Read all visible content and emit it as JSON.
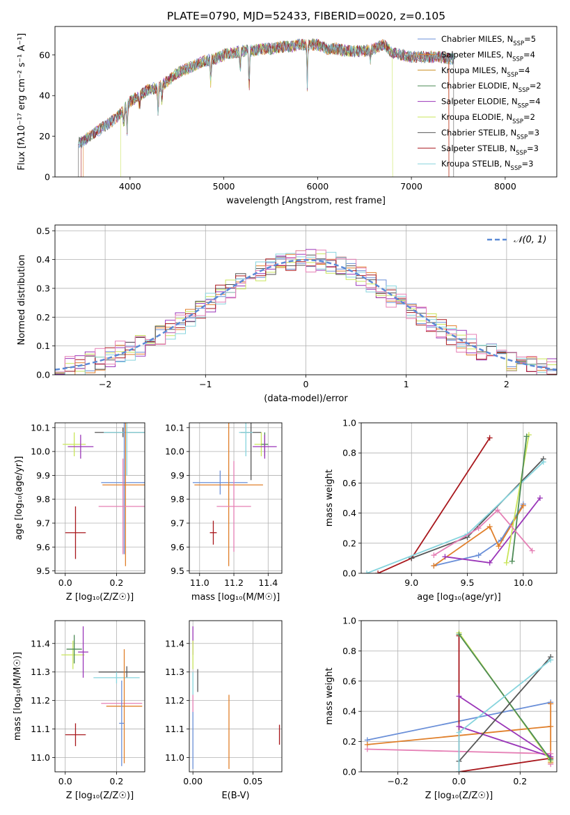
{
  "colors": {
    "Chabrier MILES": "#6a8fd8",
    "Salpeter MILES": "#e07f2a",
    "Kroupa MILES": "#c98a1c",
    "Chabrier ELODIE": "#4c8a55",
    "Salpeter ELODIE": "#9a35b8",
    "Kroupa ELODIE": "#c9e55a",
    "Chabrier STELIB": "#555555",
    "Salpeter STELIB": "#a8171c",
    "Kroupa STELIB": "#86d4dd",
    "Pink": "#e57fb5"
  },
  "chart_data": [
    {
      "id": "spectrum",
      "type": "line",
      "title": "PLATE=0790, MJD=52433, FIBERID=0020, z=0.105",
      "xlabel": "wavelength [Angstrom, rest frame]",
      "ylabel": "Flux [fλ10⁻¹⁷ erg cm⁻² s⁻¹ A⁻¹]",
      "xlim": [
        3200,
        8550
      ],
      "ylim": [
        0,
        74
      ],
      "xticks": [
        4000,
        5000,
        6000,
        7000,
        8000
      ],
      "yticks": [
        0,
        20,
        40,
        60
      ],
      "legend_position": "top-right",
      "legend": [
        {
          "name": "Chabrier MILES",
          "nssp": "5"
        },
        {
          "name": "Salpeter MILES",
          "nssp": "4"
        },
        {
          "name": "Kroupa MILES",
          "nssp": "4"
        },
        {
          "name": "Chabrier ELODIE",
          "nssp": "2"
        },
        {
          "name": "Salpeter ELODIE",
          "nssp": "4"
        },
        {
          "name": "Kroupa ELODIE",
          "nssp": "2"
        },
        {
          "name": "Chabrier STELIB",
          "nssp": "3"
        },
        {
          "name": "Salpeter STELIB",
          "nssp": "3"
        },
        {
          "name": "Kroupa STELIB",
          "nssp": "3"
        }
      ],
      "continuum": [
        [
          3480,
          17
        ],
        [
          3600,
          21
        ],
        [
          3700,
          24
        ],
        [
          3800,
          27
        ],
        [
          3900,
          31
        ],
        [
          4000,
          37
        ],
        [
          4100,
          40
        ],
        [
          4200,
          43
        ],
        [
          4300,
          44
        ],
        [
          4400,
          47
        ],
        [
          4500,
          51
        ],
        [
          4600,
          53
        ],
        [
          4700,
          55
        ],
        [
          4800,
          57
        ],
        [
          4900,
          58
        ],
        [
          5000,
          60
        ],
        [
          5100,
          61
        ],
        [
          5200,
          62
        ],
        [
          5300,
          62
        ],
        [
          5400,
          63
        ],
        [
          5500,
          63
        ],
        [
          5600,
          64
        ],
        [
          5700,
          64
        ],
        [
          5800,
          65
        ],
        [
          5900,
          65
        ],
        [
          6000,
          65
        ],
        [
          6100,
          63
        ],
        [
          6200,
          63
        ],
        [
          6300,
          62
        ],
        [
          6400,
          62
        ],
        [
          6500,
          62
        ],
        [
          6600,
          63
        ],
        [
          6700,
          65
        ],
        [
          6800,
          61
        ],
        [
          6900,
          60
        ],
        [
          7000,
          59
        ],
        [
          7100,
          59
        ],
        [
          7200,
          59
        ],
        [
          7300,
          59
        ],
        [
          7400,
          58
        ]
      ],
      "absorption_features": [
        [
          3934,
          25
        ],
        [
          3969,
          22
        ],
        [
          4102,
          34
        ],
        [
          4300,
          30
        ],
        [
          4340,
          37
        ],
        [
          4861,
          46
        ],
        [
          5175,
          52
        ],
        [
          5270,
          43
        ],
        [
          5890,
          45
        ],
        [
          6563,
          58
        ]
      ],
      "spectrum_ranges": [
        {
          "series": "Salpeter MILES",
          "start": 3500,
          "end": 7400
        },
        {
          "series": "Kroupa ELODIE",
          "start": 3900,
          "end": 6800
        },
        {
          "series": "Salpeter STELIB",
          "start": 3480,
          "end": 7400
        },
        {
          "series": "Chabrier STELIB",
          "start": 3450,
          "end": 7450
        }
      ]
    },
    {
      "id": "residuals",
      "type": "histogram",
      "xlabel": "(data-model)/error",
      "ylabel": "Normed distribution",
      "xlim": [
        -2.5,
        2.5
      ],
      "ylim": [
        0,
        0.52
      ],
      "xticks": [
        -2,
        -1,
        0,
        1,
        2
      ],
      "yticks": [
        0.0,
        0.1,
        0.2,
        0.3,
        0.4,
        0.5
      ],
      "grid": true,
      "legend_position": "top-right",
      "reference_curve": {
        "name": "𝒩(0, 1)",
        "mean": 0,
        "sigma": 1
      },
      "bin_width": 0.1,
      "histograms": [
        {
          "series": "Chabrier MILES",
          "noise": 0.03
        },
        {
          "series": "Salpeter MILES",
          "noise": 0.035
        },
        {
          "series": "Salpeter ELODIE",
          "noise": 0.04
        },
        {
          "series": "Kroupa ELODIE",
          "noise": 0.035
        },
        {
          "series": "Chabrier STELIB",
          "noise": 0.03
        },
        {
          "series": "Salpeter STELIB",
          "noise": 0.035
        },
        {
          "series": "Kroupa STELIB",
          "noise": 0.04
        },
        {
          "series": "Pink",
          "noise": 0.045
        }
      ]
    },
    {
      "id": "age_vs_Z",
      "type": "errorbar",
      "xlabel": "Z [log₁₀(Z/Z☉)]",
      "ylabel": "age  [log₁₀(age/yr)]",
      "xlim": [
        -0.04,
        0.31
      ],
      "ylim": [
        9.49,
        10.12
      ],
      "xticks": [
        0.0,
        0.2
      ],
      "yticks": [
        9.5,
        9.6,
        9.7,
        9.8,
        9.9,
        10.0,
        10.1
      ],
      "grid": true,
      "points": [
        {
          "series": "Salpeter STELIB",
          "x": 0.04,
          "y": 9.66,
          "xerr": 0.04,
          "yerr": 0.11
        },
        {
          "series": "Kroupa ELODIE",
          "x": 0.035,
          "y": 10.03,
          "xerr": 0.045,
          "yerr": 0.05
        },
        {
          "series": "Salpeter ELODIE",
          "x": 0.06,
          "y": 10.02,
          "xerr": 0.05,
          "yerr": 0.05
        },
        {
          "series": "Chabrier STELIB",
          "x": 0.225,
          "y": 10.08,
          "xerr": 0.11,
          "yerr": 0.02
        },
        {
          "series": "Kroupa STELIB",
          "x": 0.24,
          "y": 10.08,
          "xerr": 0.09,
          "yerr": 0.18
        },
        {
          "series": "Chabrier MILES",
          "x": 0.23,
          "y": 9.87,
          "xerr": 0.09,
          "yerr": 0.3
        },
        {
          "series": "Salpeter MILES",
          "x": 0.235,
          "y": 9.86,
          "xerr": 0.09,
          "yerr": 0.34
        },
        {
          "series": "Pink",
          "x": 0.225,
          "y": 9.77,
          "xerr": 0.095,
          "yerr": 0.2
        }
      ]
    },
    {
      "id": "age_vs_mass",
      "type": "errorbar",
      "xlabel": "mass [log₁₀(M/M☉)]",
      "xlim": [
        10.94,
        11.48
      ],
      "ylim": [
        9.49,
        10.12
      ],
      "xticks": [
        11.0,
        11.2,
        11.4
      ],
      "yticks": [
        9.5,
        9.6,
        9.7,
        9.8,
        9.9,
        10.0,
        10.1
      ],
      "grid": true,
      "points": [
        {
          "series": "Salpeter STELIB",
          "x": 11.08,
          "y": 9.66,
          "xerr": 0.02,
          "yerr": 0.05
        },
        {
          "series": "Chabrier MILES",
          "x": 11.12,
          "y": 9.87,
          "xerr": 0.16,
          "yerr": 0.05
        },
        {
          "series": "Salpeter MILES",
          "x": 11.17,
          "y": 9.86,
          "xerr": 0.2,
          "yerr": 0.34
        },
        {
          "series": "Pink",
          "x": 11.2,
          "y": 9.77,
          "xerr": 0.1,
          "yerr": 0.19
        },
        {
          "series": "Chabrier STELIB",
          "x": 11.3,
          "y": 10.08,
          "xerr": 0.06,
          "yerr": 0.2
        },
        {
          "series": "Kroupa STELIB",
          "x": 11.27,
          "y": 10.08,
          "xerr": 0.04,
          "yerr": 0.1
        },
        {
          "series": "Kroupa ELODIE",
          "x": 11.36,
          "y": 10.03,
          "xerr": 0.04,
          "yerr": 0.05
        },
        {
          "series": "Chabrier ELODIE",
          "x": 11.38,
          "y": 10.03,
          "xerr": 0.02,
          "yerr": 0.05
        },
        {
          "series": "Salpeter ELODIE",
          "x": 11.38,
          "y": 10.02,
          "xerr": 0.07,
          "yerr": 0.05
        }
      ]
    },
    {
      "id": "weight_vs_age",
      "type": "line",
      "xlabel": "age  [log₁₀(age/yr)]",
      "ylabel": "mass weight",
      "xlim": [
        8.55,
        10.3
      ],
      "ylim": [
        0,
        1.0
      ],
      "xticks": [
        9.0,
        9.5,
        10.0
      ],
      "yticks": [
        0.0,
        0.2,
        0.4,
        0.6,
        0.8,
        1.0
      ],
      "grid": true,
      "series": [
        {
          "series": "Salpeter STELIB",
          "points": [
            [
              8.7,
              0.0
            ],
            [
              9.0,
              0.1
            ],
            [
              9.7,
              0.9
            ]
          ]
        },
        {
          "series": "Chabrier STELIB",
          "points": [
            [
              9.0,
              0.1
            ],
            [
              9.5,
              0.24
            ],
            [
              10.18,
              0.76
            ]
          ]
        },
        {
          "series": "Kroupa STELIB",
          "points": [
            [
              8.6,
              0.0
            ],
            [
              9.5,
              0.26
            ],
            [
              10.18,
              0.74
            ]
          ]
        },
        {
          "series": "Chabrier MILES",
          "points": [
            [
              9.2,
              0.05
            ],
            [
              9.6,
              0.12
            ],
            [
              9.8,
              0.22
            ],
            [
              10.0,
              0.46
            ]
          ]
        },
        {
          "series": "Salpeter MILES",
          "points": [
            [
              9.2,
              0.05
            ],
            [
              9.7,
              0.31
            ],
            [
              9.78,
              0.18
            ],
            [
              10.0,
              0.45
            ]
          ]
        },
        {
          "series": "Salpeter ELODIE",
          "points": [
            [
              9.3,
              0.11
            ],
            [
              9.7,
              0.07
            ],
            [
              10.15,
              0.5
            ]
          ]
        },
        {
          "series": "Kroupa ELODIE",
          "points": [
            [
              9.85,
              0.07
            ],
            [
              10.05,
              0.92
            ]
          ]
        },
        {
          "series": "Chabrier ELODIE",
          "points": [
            [
              9.9,
              0.08
            ],
            [
              10.03,
              0.91
            ]
          ]
        },
        {
          "series": "Pink",
          "points": [
            [
              9.2,
              0.12
            ],
            [
              9.6,
              0.3
            ],
            [
              9.77,
              0.42
            ],
            [
              10.08,
              0.15
            ]
          ]
        }
      ]
    },
    {
      "id": "mass_vs_Z",
      "type": "errorbar",
      "xlabel": "Z [log₁₀(Z/Z☉)]",
      "ylabel": "mass [log₁₀(M/M☉)]",
      "xlim": [
        -0.04,
        0.31
      ],
      "ylim": [
        10.95,
        11.48
      ],
      "xticks": [
        0.0,
        0.2
      ],
      "yticks": [
        11.0,
        11.1,
        11.2,
        11.3,
        11.4
      ],
      "grid": true,
      "points": [
        {
          "series": "Salpeter STELIB",
          "x": 0.04,
          "y": 11.08,
          "xerr": 0.04,
          "yerr": 0.04
        },
        {
          "series": "Kroupa ELODIE",
          "x": 0.03,
          "y": 11.36,
          "xerr": 0.045,
          "yerr": 0.05
        },
        {
          "series": "Chabrier ELODIE",
          "x": 0.035,
          "y": 11.38,
          "xerr": 0.03,
          "yerr": 0.05
        },
        {
          "series": "Salpeter ELODIE",
          "x": 0.07,
          "y": 11.37,
          "xerr": 0.02,
          "yerr": 0.09
        },
        {
          "series": "Chabrier STELIB",
          "x": 0.24,
          "y": 11.3,
          "xerr": 0.11,
          "yerr": 0.02
        },
        {
          "series": "Kroupa STELIB",
          "x": 0.2,
          "y": 11.28,
          "xerr": 0.09,
          "yerr": 0.02
        },
        {
          "series": "Pink",
          "x": 0.22,
          "y": 11.19,
          "xerr": 0.08,
          "yerr": 0.01
        },
        {
          "series": "Salpeter MILES",
          "x": 0.23,
          "y": 11.18,
          "xerr": 0.07,
          "yerr": 0.2
        },
        {
          "series": "Chabrier MILES",
          "x": 0.22,
          "y": 11.12,
          "xerr": 0.01,
          "yerr": 0.15
        }
      ]
    },
    {
      "id": "mass_vs_EBV",
      "type": "errorbar",
      "xlabel": "E(B-V)",
      "xlim": [
        -0.003,
        0.074
      ],
      "ylim": [
        10.95,
        11.48
      ],
      "xticks": [
        0.0,
        0.05
      ],
      "yticks": [
        11.0,
        11.1,
        11.2,
        11.3,
        11.4
      ],
      "grid": true,
      "points": [
        {
          "series": "Salpeter ELODIE",
          "x": 0.0,
          "y": 11.41,
          "xerr": 0,
          "yerr": 0.05
        },
        {
          "series": "Kroupa ELODIE",
          "x": 0.0,
          "y": 11.36,
          "xerr": 0,
          "yerr": 0.05
        },
        {
          "series": "Chabrier STELIB",
          "x": 0.004,
          "y": 11.27,
          "xerr": 0,
          "yerr": 0.04
        },
        {
          "series": "Kroupa STELIB",
          "x": 0.0,
          "y": 11.26,
          "xerr": 0,
          "yerr": 0.04
        },
        {
          "series": "Pink",
          "x": 0.0,
          "y": 11.19,
          "xerr": 0,
          "yerr": 0.03
        },
        {
          "series": "Salpeter MILES",
          "x": 0.03,
          "y": 11.09,
          "xerr": 0,
          "yerr": 0.13
        },
        {
          "series": "Chabrier MILES",
          "x": 0.0,
          "y": 11.06,
          "xerr": 0,
          "yerr": 0.1
        },
        {
          "series": "Salpeter STELIB",
          "x": 0.072,
          "y": 11.08,
          "xerr": 0,
          "yerr": 0.035
        }
      ]
    },
    {
      "id": "weight_vs_Z",
      "type": "line",
      "xlabel": "Z [log₁₀(Z/Z☉)]",
      "ylabel": "mass weight",
      "xlim": [
        -0.32,
        0.32
      ],
      "ylim": [
        0,
        1.0
      ],
      "xticks": [
        -0.2,
        0.0,
        0.2
      ],
      "yticks": [
        0.0,
        0.2,
        0.4,
        0.6,
        0.8,
        1.0
      ],
      "grid": true,
      "series": [
        {
          "series": "Chabrier MILES",
          "points": [
            [
              -0.3,
              0.21
            ],
            [
              0.3,
              0.46
            ]
          ]
        },
        {
          "series": "Salpeter MILES",
          "points": [
            [
              -0.3,
              0.18
            ],
            [
              0.3,
              0.3
            ],
            [
              0.3,
              0.45
            ],
            [
              0.3,
              0.06
            ]
          ]
        },
        {
          "series": "Pink",
          "points": [
            [
              -0.3,
              0.15
            ],
            [
              0.3,
              0.12
            ],
            [
              0.3,
              0.05
            ]
          ]
        },
        {
          "series": "Salpeter STELIB",
          "points": [
            [
              0.0,
              0.9
            ],
            [
              0.0,
              0.0
            ],
            [
              0.3,
              0.09
            ]
          ]
        },
        {
          "series": "Salpeter ELODIE",
          "points": [
            [
              0.0,
              0.5
            ],
            [
              0.3,
              0.1
            ],
            [
              0.0,
              0.3
            ]
          ]
        },
        {
          "series": "Kroupa ELODIE",
          "points": [
            [
              0.0,
              0.92
            ],
            [
              0.3,
              0.07
            ]
          ]
        },
        {
          "series": "Chabrier ELODIE",
          "points": [
            [
              0.0,
              0.91
            ],
            [
              0.3,
              0.08
            ]
          ]
        },
        {
          "series": "Chabrier STELIB",
          "points": [
            [
              0.0,
              0.07
            ],
            [
              0.3,
              0.76
            ]
          ]
        },
        {
          "series": "Kroupa STELIB",
          "points": [
            [
              0.0,
              0.0
            ],
            [
              0.0,
              0.26
            ],
            [
              0.3,
              0.74
            ]
          ]
        }
      ]
    }
  ]
}
